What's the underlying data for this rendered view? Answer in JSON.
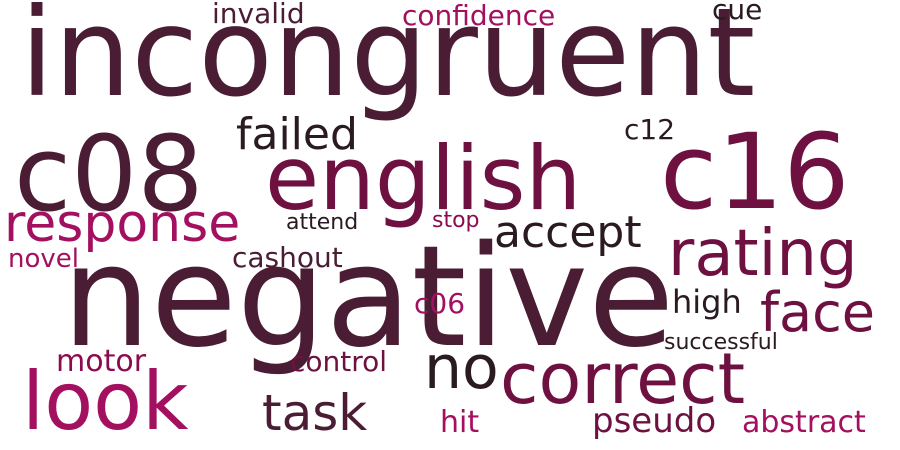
{
  "words": {
    "incongruent": "incongruent",
    "negative": "negative",
    "c08": "c08",
    "english": "english",
    "c16": "c16",
    "response": "response",
    "failed": "failed",
    "accept": "accept",
    "rating": "rating",
    "face": "face",
    "look": "look",
    "task": "task",
    "no": "no",
    "correct": "correct",
    "high": "high",
    "c12": "c12",
    "cue": "cue",
    "invalid": "invalid",
    "confidence": "confidence",
    "attend": "attend",
    "stop": "stop",
    "novel": "novel",
    "cashout": "cashout",
    "c06": "c06",
    "motor": "motor",
    "control": "control",
    "successful": "successful",
    "hit": "hit",
    "pseudo": "pseudo",
    "abstract": "abstract"
  },
  "colors": {
    "plum": "#4a1d35",
    "dark": "#2a1a22",
    "berry": "#6e1140",
    "wine": "#8c0b4e",
    "magenta": "#a31060",
    "background": "#ffffff"
  }
}
